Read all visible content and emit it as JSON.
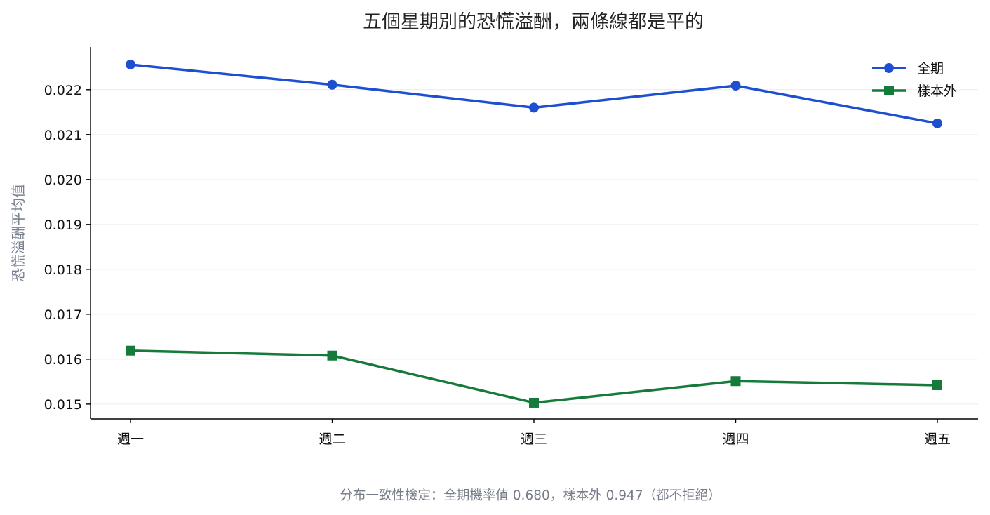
{
  "chart_data": {
    "type": "line",
    "title": "五個星期別的恐慌溢酬，兩條線都是平的",
    "xlabel": "",
    "ylabel": "恐慌溢酬平均值",
    "categories": [
      "週一",
      "週二",
      "週三",
      "週四",
      "週五"
    ],
    "ylim": [
      0.01467,
      0.02295
    ],
    "yticks": [
      0.015,
      0.016,
      0.017,
      0.018,
      0.019,
      0.02,
      0.021,
      0.022
    ],
    "ytick_labels": [
      "0.015",
      "0.016",
      "0.017",
      "0.018",
      "0.019",
      "0.020",
      "0.021",
      "0.022"
    ],
    "grid": "horizontal",
    "legend_position": "top-right",
    "series": [
      {
        "name": "全期",
        "marker": "circle",
        "color": "#1f4fd1",
        "values": [
          0.02256,
          0.02211,
          0.0216,
          0.02209,
          0.02125
        ]
      },
      {
        "name": "樣本外",
        "marker": "square",
        "color": "#157a3a",
        "values": [
          0.01619,
          0.01608,
          0.01503,
          0.01551,
          0.01542
        ]
      }
    ],
    "caption": "分布一致性檢定：全期機率值 0.680，樣本外 0.947（都不拒絕）"
  }
}
